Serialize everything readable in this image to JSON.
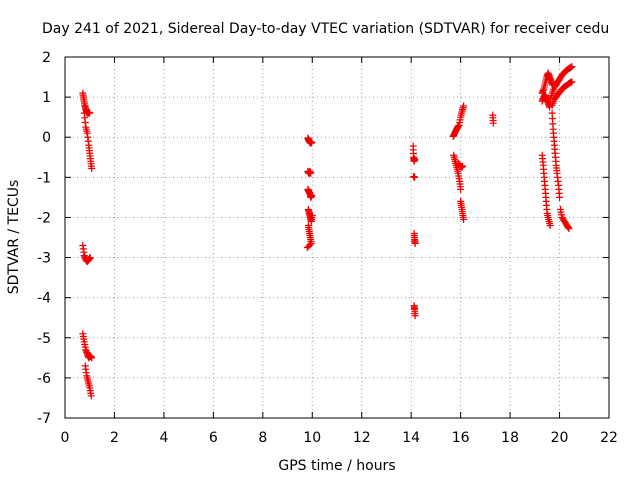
{
  "chart_data": {
    "type": "scatter",
    "title": "Day 241 of 2021, Sidereal Day-to-day VTEC variation (SDTVAR) for receiver cedu",
    "xlabel": "GPS time / hours",
    "ylabel": "SDTVAR / TECUs",
    "xlim": [
      0,
      22
    ],
    "ylim": [
      -7,
      2
    ],
    "xticks": [
      "0",
      "2",
      "4",
      "6",
      "8",
      "10",
      "12",
      "14",
      "16",
      "18",
      "20",
      "22"
    ],
    "yticks": [
      "2",
      "1",
      "0",
      "-1",
      "-2",
      "-3",
      "-4",
      "-5",
      "-6",
      "-7"
    ],
    "grid": true,
    "marker": "+",
    "color": "#ee0000",
    "segments": [
      [
        [
          0.72,
          1.1
        ],
        [
          0.76,
          0.95
        ],
        [
          0.8,
          0.8
        ],
        [
          0.84,
          0.7
        ],
        [
          0.88,
          0.62
        ],
        [
          0.92,
          0.6
        ],
        [
          0.96,
          0.62
        ],
        [
          1.0,
          0.6
        ]
      ],
      [
        [
          0.78,
          0.6
        ],
        [
          0.84,
          0.25
        ],
        [
          0.9,
          0.1
        ],
        [
          0.96,
          -0.2
        ],
        [
          1.0,
          -0.4
        ],
        [
          1.04,
          -0.6
        ],
        [
          1.08,
          -0.78
        ]
      ],
      [
        [
          0.72,
          -2.7
        ],
        [
          0.78,
          -2.95
        ],
        [
          0.84,
          -3.05
        ],
        [
          0.9,
          -3.1
        ],
        [
          0.96,
          -3.05
        ],
        [
          1.02,
          -3.0
        ]
      ],
      [
        [
          0.72,
          -4.9
        ],
        [
          0.78,
          -5.1
        ],
        [
          0.84,
          -5.3
        ],
        [
          0.9,
          -5.4
        ],
        [
          0.96,
          -5.5
        ],
        [
          1.02,
          -5.45
        ],
        [
          1.08,
          -5.5
        ]
      ],
      [
        [
          0.82,
          -5.7
        ],
        [
          0.88,
          -5.95
        ],
        [
          0.94,
          -6.1
        ],
        [
          1.0,
          -6.25
        ],
        [
          1.06,
          -6.45
        ]
      ],
      [
        [
          9.82,
          -0.02
        ],
        [
          9.86,
          -0.08
        ],
        [
          9.9,
          -0.12
        ],
        [
          9.94,
          -0.15
        ],
        [
          9.98,
          -0.12
        ]
      ],
      [
        [
          9.82,
          -0.85
        ],
        [
          9.86,
          -0.9
        ],
        [
          9.9,
          -0.85
        ],
        [
          9.94,
          -0.9
        ]
      ],
      [
        [
          9.82,
          -1.3
        ],
        [
          9.86,
          -1.35
        ],
        [
          9.9,
          -1.4
        ],
        [
          9.94,
          -1.5
        ],
        [
          9.98,
          -1.45
        ]
      ],
      [
        [
          9.84,
          -1.8
        ],
        [
          9.88,
          -1.9
        ],
        [
          9.92,
          -2.0
        ],
        [
          9.96,
          -2.1
        ],
        [
          10.0,
          -1.95
        ]
      ],
      [
        [
          9.84,
          -2.2
        ],
        [
          9.88,
          -2.35
        ],
        [
          9.92,
          -2.5
        ],
        [
          9.96,
          -2.65
        ],
        [
          9.8,
          -2.75
        ]
      ],
      [
        [
          14.08,
          -0.22
        ],
        [
          14.1,
          -0.5
        ],
        [
          14.12,
          -0.6
        ],
        [
          14.14,
          -0.55
        ]
      ],
      [
        [
          14.1,
          -0.98
        ],
        [
          14.14,
          -1.0
        ]
      ],
      [
        [
          14.12,
          -2.4
        ],
        [
          14.14,
          -2.55
        ],
        [
          14.16,
          -2.65
        ]
      ],
      [
        [
          14.12,
          -4.2
        ],
        [
          14.14,
          -4.3
        ],
        [
          14.16,
          -4.45
        ]
      ],
      [
        [
          15.7,
          0.02
        ],
        [
          15.76,
          0.1
        ],
        [
          15.82,
          0.18
        ],
        [
          15.88,
          0.25
        ],
        [
          15.94,
          0.3
        ],
        [
          16.0,
          0.5
        ],
        [
          16.06,
          0.65
        ],
        [
          16.12,
          0.78
        ]
      ],
      [
        [
          15.72,
          -0.45
        ],
        [
          15.78,
          -0.6
        ],
        [
          15.84,
          -0.75
        ],
        [
          15.9,
          -0.9
        ],
        [
          15.96,
          -1.1
        ],
        [
          16.0,
          -1.3
        ]
      ],
      [
        [
          15.9,
          -0.65
        ],
        [
          15.96,
          -0.7
        ],
        [
          16.02,
          -0.75
        ],
        [
          16.08,
          -0.72
        ]
      ],
      [
        [
          16.0,
          -1.6
        ],
        [
          16.04,
          -1.75
        ],
        [
          16.08,
          -1.9
        ],
        [
          16.12,
          -2.05
        ]
      ],
      [
        [
          17.3,
          0.55
        ],
        [
          17.32,
          0.35
        ]
      ],
      [
        [
          19.3,
          1.1
        ],
        [
          19.36,
          1.2
        ],
        [
          19.42,
          1.35
        ],
        [
          19.48,
          1.5
        ],
        [
          19.54,
          1.6
        ],
        [
          19.6,
          1.5
        ],
        [
          19.66,
          1.4
        ],
        [
          19.72,
          1.3
        ]
      ],
      [
        [
          19.3,
          0.9
        ],
        [
          19.36,
          1.0
        ],
        [
          19.42,
          1.05
        ],
        [
          19.48,
          0.95
        ],
        [
          19.54,
          0.85
        ],
        [
          19.6,
          0.75
        ]
      ],
      [
        [
          19.6,
          0.9
        ],
        [
          19.7,
          1.1
        ],
        [
          19.8,
          1.25
        ],
        [
          19.9,
          1.35
        ],
        [
          20.0,
          1.45
        ],
        [
          20.1,
          1.55
        ],
        [
          20.2,
          1.62
        ],
        [
          20.3,
          1.68
        ],
        [
          20.4,
          1.72
        ],
        [
          20.5,
          1.76
        ]
      ],
      [
        [
          19.7,
          0.8
        ],
        [
          19.8,
          0.95
        ],
        [
          19.9,
          1.05
        ],
        [
          20.0,
          1.12
        ],
        [
          20.1,
          1.2
        ],
        [
          20.2,
          1.26
        ],
        [
          20.3,
          1.3
        ],
        [
          20.4,
          1.35
        ],
        [
          20.5,
          1.38
        ]
      ],
      [
        [
          19.3,
          -0.45
        ],
        [
          19.34,
          -0.7
        ],
        [
          19.38,
          -1.0
        ],
        [
          19.42,
          -1.3
        ],
        [
          19.46,
          -1.6
        ],
        [
          19.5,
          -1.9
        ],
        [
          19.56,
          -2.05
        ],
        [
          19.62,
          -2.2
        ]
      ],
      [
        [
          19.7,
          0.6
        ],
        [
          19.74,
          0.2
        ],
        [
          19.78,
          -0.1
        ],
        [
          19.82,
          -0.4
        ],
        [
          19.86,
          -0.7
        ],
        [
          19.9,
          -0.9
        ],
        [
          19.96,
          -1.2
        ],
        [
          20.0,
          -1.5
        ]
      ],
      [
        [
          20.04,
          -1.8
        ],
        [
          20.1,
          -2.0
        ],
        [
          20.2,
          -2.1
        ],
        [
          20.3,
          -2.2
        ],
        [
          20.38,
          -2.28
        ]
      ]
    ]
  }
}
